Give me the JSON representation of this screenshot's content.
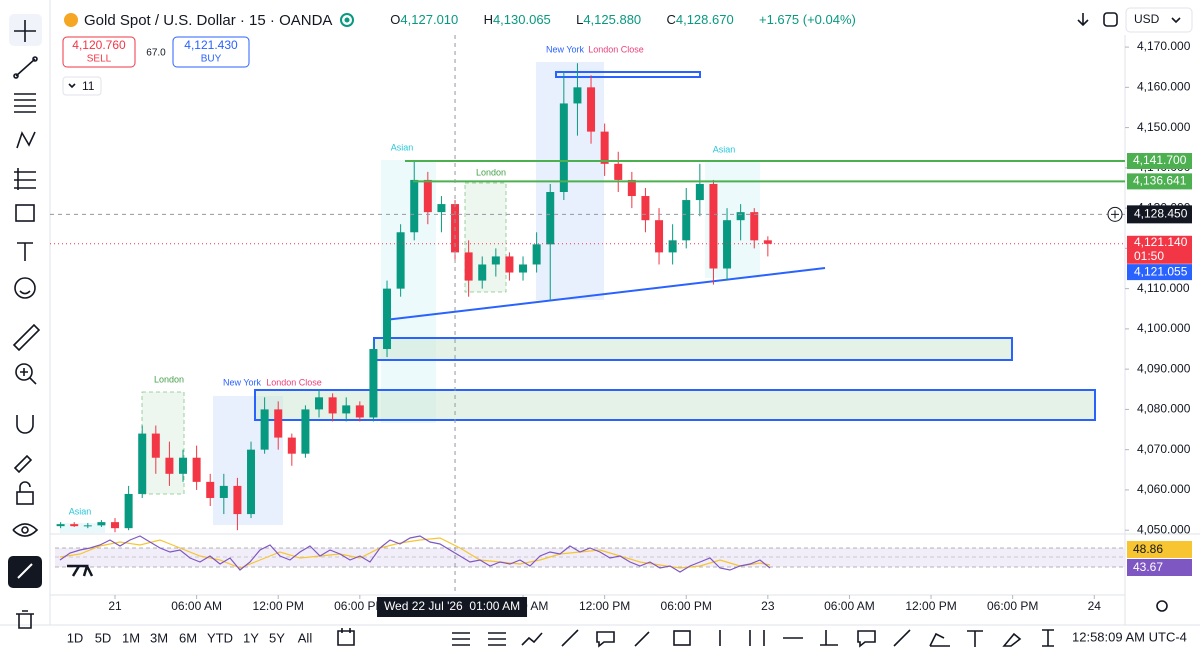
{
  "header": {
    "symbol": "Gold Spot / U.S. Dollar · 15 · OANDA",
    "ohlc": [
      {
        "key": "O",
        "value": "4,127.010"
      },
      {
        "key": "H",
        "value": "4,130.065"
      },
      {
        "key": "L",
        "value": "4,125.880"
      },
      {
        "key": "C",
        "value": "4,128.670"
      }
    ],
    "change": "+1.675 (+0.04%)",
    "currency": "USD"
  },
  "trade": {
    "sell_price": "4,120.760",
    "sell_label": "SELL",
    "spread": "67.0",
    "buy_price": "4,121.430",
    "buy_label": "BUY"
  },
  "indicators_collapsed": "11",
  "chart_data": {
    "type": "candlestick",
    "x": [
      -4,
      -3,
      -2,
      -1,
      0,
      1,
      2,
      3,
      4,
      5,
      6,
      7,
      8,
      9,
      10,
      11,
      12,
      13,
      14,
      15,
      16,
      17,
      18,
      19,
      20,
      21,
      22,
      23,
      24,
      25,
      26,
      27,
      28,
      29,
      30,
      31,
      32,
      33,
      34,
      35,
      36,
      37,
      38,
      39,
      40,
      41,
      42,
      43,
      44,
      45,
      46,
      47,
      48
    ],
    "open": [
      4051,
      4051.5,
      4051,
      4051.2,
      4052,
      4050.5,
      4059,
      4074,
      4068,
      4064,
      4068,
      4062,
      4058,
      4061,
      4054,
      4070,
      4080,
      4073,
      4069,
      4080,
      4083,
      4079,
      4081,
      4078,
      4095,
      4110,
      4124,
      4137,
      4129,
      4131,
      4119,
      4112,
      4116,
      4118,
      4114,
      4116,
      4121,
      4134,
      4156,
      4160,
      4149,
      4141,
      4137,
      4133,
      4127,
      4119,
      4122,
      4132,
      4136,
      4115,
      4127,
      4129,
      4122
    ],
    "high": [
      4052,
      4052,
      4051.8,
      4052.5,
      4053,
      4061,
      4076,
      4076,
      4072,
      4070,
      4071,
      4064,
      4064,
      4063,
      4072,
      4083,
      4082,
      4074,
      4081,
      4085,
      4084,
      4083,
      4082,
      4097,
      4112,
      4126,
      4141.5,
      4139,
      4133,
      4132,
      4122,
      4118,
      4120,
      4119,
      4118,
      4124,
      4136,
      4164,
      4166,
      4163,
      4151,
      4144,
      4139,
      4135,
      4130,
      4126,
      4135,
      4141,
      4137,
      4130,
      4131,
      4130,
      4123
    ],
    "low": [
      4050.5,
      4050.8,
      4050.5,
      4050.8,
      4049.5,
      4050,
      4058,
      4064,
      4061,
      4062,
      4060,
      4056,
      4054,
      4050,
      4053,
      4069,
      4070,
      4066,
      4068,
      4078,
      4077,
      4077,
      4077,
      4077,
      4093,
      4108,
      4122,
      4126,
      4124,
      4117,
      4108,
      4110,
      4113,
      4112,
      4112,
      4114,
      4107,
      4132,
      4148,
      4146,
      4138,
      4134,
      4130,
      4124,
      4116,
      4116,
      4120,
      4128,
      4111,
      4112,
      4122,
      4120,
      4118
    ],
    "close": [
      4051.5,
      4051,
      4051.2,
      4052,
      4050.5,
      4059,
      4074,
      4068,
      4064,
      4068,
      4062,
      4058,
      4061,
      4054,
      4070,
      4080,
      4073,
      4069,
      4080,
      4083,
      4079,
      4081,
      4078,
      4095,
      4110,
      4124,
      4137,
      4129,
      4131,
      4119,
      4112,
      4116,
      4118,
      4114,
      4116,
      4121,
      4134,
      4156,
      4160,
      4149,
      4141,
      4137,
      4133,
      4127,
      4119,
      4122,
      4132,
      4136,
      4115,
      4127,
      4129,
      4122,
      4121.14
    ],
    "up_color": "#089981",
    "down_color": "#f23645",
    "ylim": [
      4049.3,
      4173.0
    ],
    "yticks": [
      {
        "value": 4050,
        "label": "4,050.000"
      },
      {
        "value": 4060,
        "label": "4,060.000"
      },
      {
        "value": 4070,
        "label": "4,070.000"
      },
      {
        "value": 4080,
        "label": "4,080.000"
      },
      {
        "value": 4090,
        "label": "4,090.000"
      },
      {
        "value": 4100,
        "label": "4,100.000"
      },
      {
        "value": 4110,
        "label": "4,110.000"
      },
      {
        "value": 4120,
        "label": "4,120.000"
      },
      {
        "value": 4130,
        "label": "4,130.000"
      },
      {
        "value": 4140,
        "label": "4,140.000"
      },
      {
        "value": 4150,
        "label": "4,150.000"
      },
      {
        "value": 4160,
        "label": "4,160.000"
      },
      {
        "value": 4170,
        "label": "4,170.000"
      }
    ],
    "xlim": [
      -4.78,
      74.26
    ],
    "xticks": [
      {
        "value": 0,
        "label": "21"
      },
      {
        "value": 6,
        "label": "06:00 AM"
      },
      {
        "value": 12,
        "label": "12:00 PM"
      },
      {
        "value": 18,
        "label": "06:00 PM"
      },
      {
        "value": 30,
        "label": "06:00 AM"
      },
      {
        "value": 36,
        "label": "12:00 PM"
      },
      {
        "value": 42,
        "label": "06:00 PM"
      },
      {
        "value": 48,
        "label": "23"
      },
      {
        "value": 54,
        "label": "06:00 AM"
      },
      {
        "value": 60,
        "label": "12:00 PM"
      },
      {
        "value": 66,
        "label": "06:00 PM"
      },
      {
        "value": 72,
        "label": "24"
      }
    ],
    "crosshair": {
      "x": 25,
      "label": "Wed 22 Jul '26  01:00 AM",
      "price": 4128.45,
      "price_label": "4,128.450"
    },
    "levels": [
      {
        "price": 4141.7,
        "label": "4,141.700"
      },
      {
        "price": 4136.641,
        "label": "4,136.641"
      }
    ],
    "level_color": "#4caf50",
    "last_price": {
      "value": 4121.14,
      "label": "4,121.140",
      "countdown": "01:50"
    },
    "bid_line": {
      "value": 4121.055,
      "label": "4,121.055"
    },
    "sessions": [
      "Asian",
      "London",
      "New York",
      "London Close",
      "Asian",
      "London",
      "New York",
      "London Close",
      "Asian"
    ],
    "rsi": {
      "ma_label": "48.86",
      "value_label": "43.67"
    }
  },
  "bottom_bar": {
    "ranges": [
      "1D",
      "5D",
      "1M",
      "3M",
      "6M",
      "YTD",
      "1Y",
      "5Y",
      "All"
    ],
    "clock": "12:58:09 AM UTC-4"
  }
}
